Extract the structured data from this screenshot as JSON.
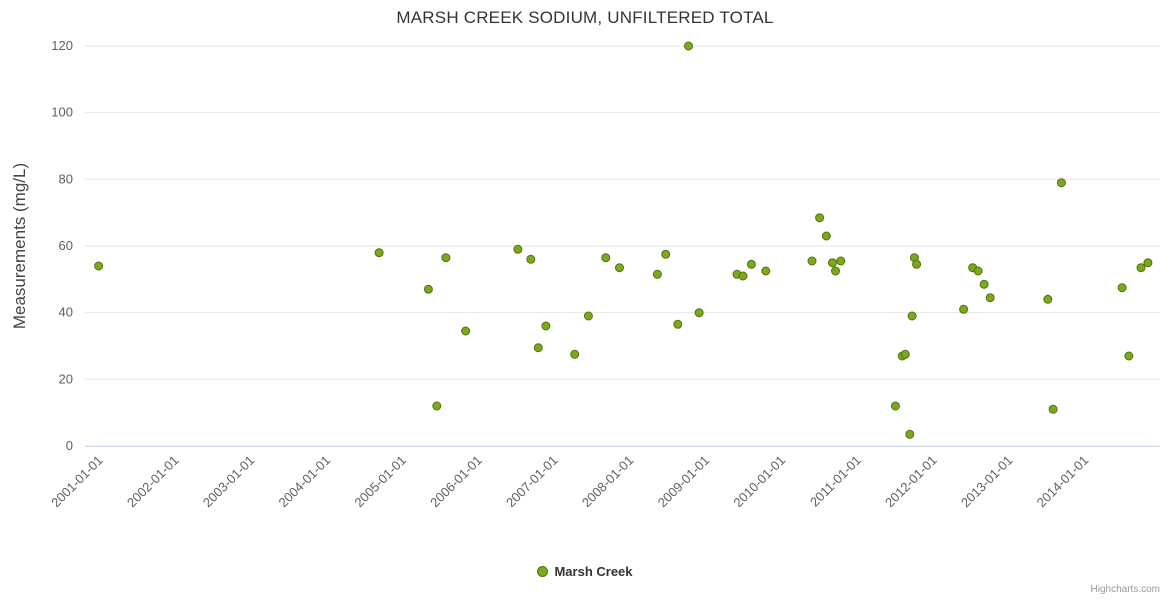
{
  "chart_data": {
    "type": "scatter",
    "title": "MARSH CREEK SODIUM, UNFILTERED TOTAL",
    "xlabel": "",
    "ylabel": "Measurements (mg/L)",
    "ylim": [
      0,
      120
    ],
    "ytick_interval": 20,
    "yticks": [
      0,
      20,
      40,
      60,
      80,
      100,
      120
    ],
    "x_min": 2000.82,
    "x_max": 2015.0,
    "grid": "horizontal-only",
    "legend_position": "bottom-center",
    "xticks": [
      {
        "year": 2001,
        "label": "2001-01-01"
      },
      {
        "year": 2002,
        "label": "2002-01-01"
      },
      {
        "year": 2003,
        "label": "2003-01-01"
      },
      {
        "year": 2004,
        "label": "2004-01-01"
      },
      {
        "year": 2005,
        "label": "2005-01-01"
      },
      {
        "year": 2006,
        "label": "2006-01-01"
      },
      {
        "year": 2007,
        "label": "2007-01-01"
      },
      {
        "year": 2008,
        "label": "2008-01-01"
      },
      {
        "year": 2009,
        "label": "2009-01-01"
      },
      {
        "year": 2010,
        "label": "2010-01-01"
      },
      {
        "year": 2011,
        "label": "2011-01-01"
      },
      {
        "year": 2012,
        "label": "2012-01-01"
      },
      {
        "year": 2013,
        "label": "2013-01-01"
      },
      {
        "year": 2014,
        "label": "2014-01-01"
      }
    ],
    "series": [
      {
        "name": "Marsh Creek",
        "color": "#7CA81E",
        "marker_stroke": "#537312",
        "marker_radius": 4,
        "points": [
          [
            2001.0,
            54
          ],
          [
            2004.7,
            58
          ],
          [
            2005.35,
            47
          ],
          [
            2005.46,
            12
          ],
          [
            2005.58,
            56.5
          ],
          [
            2005.84,
            34.5
          ],
          [
            2006.53,
            59
          ],
          [
            2006.7,
            56
          ],
          [
            2006.8,
            29.5
          ],
          [
            2006.9,
            36
          ],
          [
            2007.28,
            27.5
          ],
          [
            2007.46,
            39
          ],
          [
            2007.69,
            56.5
          ],
          [
            2007.87,
            53.5
          ],
          [
            2008.37,
            51.5
          ],
          [
            2008.48,
            57.5
          ],
          [
            2008.64,
            36.5
          ],
          [
            2008.78,
            120
          ],
          [
            2008.92,
            40
          ],
          [
            2009.42,
            51.5
          ],
          [
            2009.5,
            51
          ],
          [
            2009.61,
            54.5
          ],
          [
            2009.8,
            52.5
          ],
          [
            2010.41,
            55.5
          ],
          [
            2010.51,
            68.5
          ],
          [
            2010.6,
            63
          ],
          [
            2010.68,
            55
          ],
          [
            2010.72,
            52.5
          ],
          [
            2010.79,
            55.5
          ],
          [
            2011.51,
            12
          ],
          [
            2011.6,
            27
          ],
          [
            2011.64,
            27.5
          ],
          [
            2011.7,
            3.5
          ],
          [
            2011.73,
            39
          ],
          [
            2011.76,
            56.5
          ],
          [
            2011.79,
            54.5
          ],
          [
            2012.41,
            41
          ],
          [
            2012.53,
            53.5
          ],
          [
            2012.6,
            52.5
          ],
          [
            2012.68,
            48.5
          ],
          [
            2012.76,
            44.5
          ],
          [
            2013.52,
            44
          ],
          [
            2013.59,
            11
          ],
          [
            2013.7,
            79
          ],
          [
            2014.5,
            47.5
          ],
          [
            2014.59,
            27
          ],
          [
            2014.75,
            53.5
          ],
          [
            2014.84,
            55
          ]
        ]
      }
    ],
    "colors": {
      "gridline": "#e6e6e6",
      "axis_line": "#ccd6eb",
      "title_text": "#333333",
      "tick_text": "#606060"
    }
  },
  "credits": "Highcharts.com"
}
